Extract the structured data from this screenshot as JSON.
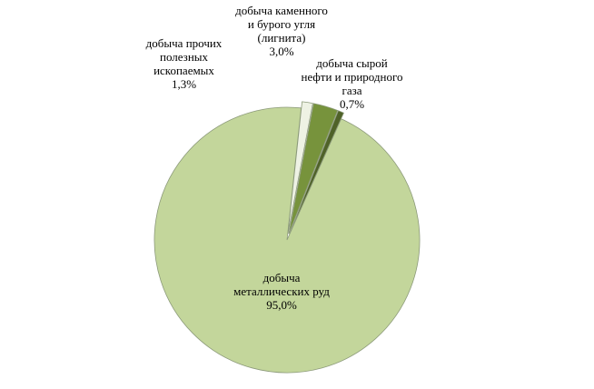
{
  "chart_data": {
    "type": "pie",
    "categories": [
      "добыча каменного и бурого угля (лигнита)",
      "добыча сырой нефти и природного газа",
      "добыча металлических руд",
      "добыча прочих полезных ископаемых"
    ],
    "values": [
      3.0,
      0.7,
      95.0,
      1.3
    ],
    "value_labels": [
      "3,0%",
      "0,7%",
      "95,0%",
      "1,3%"
    ],
    "colors": [
      "#77933c",
      "#4f6228",
      "#c3d69b",
      "#eef2e4"
    ]
  }
}
